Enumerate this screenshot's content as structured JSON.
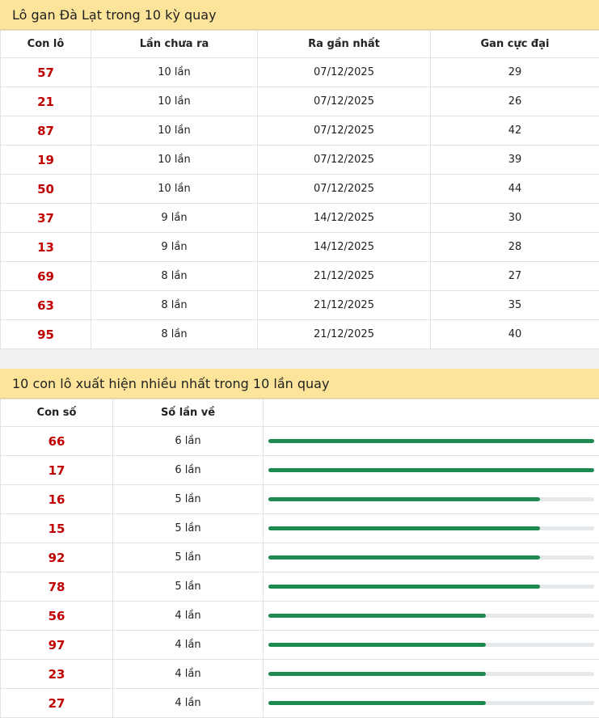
{
  "section1": {
    "title": "Lô gan Đà Lạt trong 10 kỳ quay",
    "headers": [
      "Con lô",
      "Lần chưa ra",
      "Ra gần nhất",
      "Gan cực đại"
    ],
    "rows": [
      {
        "num": "57",
        "missed": "10 lần",
        "last": "07/12/2025",
        "max": "29"
      },
      {
        "num": "21",
        "missed": "10 lần",
        "last": "07/12/2025",
        "max": "26"
      },
      {
        "num": "87",
        "missed": "10 lần",
        "last": "07/12/2025",
        "max": "42"
      },
      {
        "num": "19",
        "missed": "10 lần",
        "last": "07/12/2025",
        "max": "39"
      },
      {
        "num": "50",
        "missed": "10 lần",
        "last": "07/12/2025",
        "max": "44"
      },
      {
        "num": "37",
        "missed": "9 lần",
        "last": "14/12/2025",
        "max": "30"
      },
      {
        "num": "13",
        "missed": "9 lần",
        "last": "14/12/2025",
        "max": "28"
      },
      {
        "num": "69",
        "missed": "8 lần",
        "last": "21/12/2025",
        "max": "27"
      },
      {
        "num": "63",
        "missed": "8 lần",
        "last": "21/12/2025",
        "max": "35"
      },
      {
        "num": "95",
        "missed": "8 lần",
        "last": "21/12/2025",
        "max": "40"
      }
    ]
  },
  "section2": {
    "title": "10 con lô xuất hiện nhiều nhất trong 10 lần quay",
    "headers": [
      "Con số",
      "Số lần về",
      ""
    ],
    "rows": [
      {
        "num": "66",
        "count": "6 lần",
        "fraction": 1.0
      },
      {
        "num": "17",
        "count": "6 lần",
        "fraction": 1.0
      },
      {
        "num": "16",
        "count": "5 lần",
        "fraction": 0.8333
      },
      {
        "num": "15",
        "count": "5 lần",
        "fraction": 0.8333
      },
      {
        "num": "92",
        "count": "5 lần",
        "fraction": 0.8333
      },
      {
        "num": "78",
        "count": "5 lần",
        "fraction": 0.8333
      },
      {
        "num": "56",
        "count": "4 lần",
        "fraction": 0.6667
      },
      {
        "num": "97",
        "count": "4 lần",
        "fraction": 0.6667
      },
      {
        "num": "23",
        "count": "4 lần",
        "fraction": 0.6667
      },
      {
        "num": "27",
        "count": "4 lần",
        "fraction": 0.6667
      }
    ]
  },
  "colors": {
    "header_bg": "#fde49b",
    "number_red": "#c00000",
    "bar_green": "#1e8a52",
    "bar_track": "#e6e9ec"
  }
}
